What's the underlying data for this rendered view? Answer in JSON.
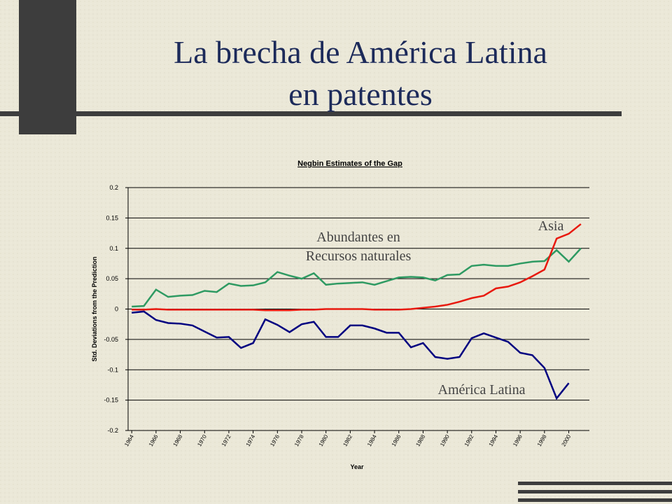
{
  "slide": {
    "title_lines": [
      "La brecha de América Latina",
      "en patentes"
    ]
  },
  "chart_data": {
    "type": "line",
    "title": "Negbin Estimates of the Gap",
    "x_label": "Year",
    "y_label": "Std. Deviations from the Prediction",
    "x": [
      1964,
      1965,
      1966,
      1967,
      1968,
      1969,
      1970,
      1971,
      1972,
      1973,
      1974,
      1975,
      1976,
      1977,
      1978,
      1979,
      1980,
      1981,
      1982,
      1983,
      1984,
      1985,
      1986,
      1987,
      1988,
      1989,
      1990,
      1991,
      1992,
      1993,
      1994,
      1995,
      1996,
      1997,
      1998,
      1999,
      2000,
      2001
    ],
    "xlim": [
      1963.7,
      2001.7
    ],
    "xticks": [
      1964,
      1966,
      1968,
      1970,
      1972,
      1974,
      1976,
      1978,
      1980,
      1982,
      1984,
      1986,
      1988,
      1990,
      1992,
      1994,
      1996,
      1998,
      2000
    ],
    "ylim": [
      -0.2,
      0.2
    ],
    "yticks": [
      0.2,
      0.15,
      0.1,
      0.05,
      0,
      -0.05,
      -0.1,
      -0.15,
      -0.2
    ],
    "grid": true,
    "series": [
      {
        "name": "Abundantes en Recursos naturales",
        "color": "#2e9a62",
        "values": [
          0.004,
          0.005,
          0.032,
          0.02,
          0.022,
          0.023,
          0.03,
          0.028,
          0.042,
          0.038,
          0.039,
          0.044,
          0.061,
          0.055,
          0.05,
          0.059,
          0.04,
          0.042,
          0.043,
          0.044,
          0.04,
          0.046,
          0.052,
          0.053,
          0.052,
          0.047,
          0.056,
          0.057,
          0.071,
          0.073,
          0.071,
          0.071,
          0.075,
          0.078,
          0.079,
          0.097,
          0.078,
          0.1
        ]
      },
      {
        "name": "Asia",
        "color": "#e8190e",
        "values": [
          -0.001,
          -0.001,
          0,
          -0.001,
          -0.001,
          -0.001,
          -0.001,
          -0.001,
          -0.001,
          -0.001,
          -0.001,
          -0.002,
          -0.002,
          -0.002,
          -0.001,
          -0.001,
          0,
          0,
          0,
          0,
          -0.001,
          -0.001,
          -0.001,
          0,
          0.002,
          0.004,
          0.007,
          0.012,
          0.018,
          0.022,
          0.034,
          0.037,
          0.044,
          0.054,
          0.065,
          0.116,
          0.124,
          0.14
        ]
      },
      {
        "name": "América Latina",
        "color": "#000080",
        "values": [
          -0.006,
          -0.004,
          -0.018,
          -0.023,
          -0.024,
          -0.027,
          -0.037,
          -0.047,
          -0.046,
          -0.064,
          -0.056,
          -0.017,
          -0.026,
          -0.038,
          -0.025,
          -0.021,
          -0.046,
          -0.046,
          -0.027,
          -0.027,
          -0.032,
          -0.039,
          -0.039,
          -0.063,
          -0.056,
          -0.079,
          -0.082,
          -0.079,
          -0.048,
          -0.04,
          -0.047,
          -0.054,
          -0.072,
          -0.076,
          -0.097,
          -0.147,
          -0.122,
          null
        ]
      }
    ],
    "annotations": [
      {
        "lines": [
          "Abundantes en",
          "Recursos naturales"
        ]
      },
      {
        "lines": [
          "Asia"
        ]
      },
      {
        "lines": [
          "América Latina"
        ]
      }
    ]
  }
}
